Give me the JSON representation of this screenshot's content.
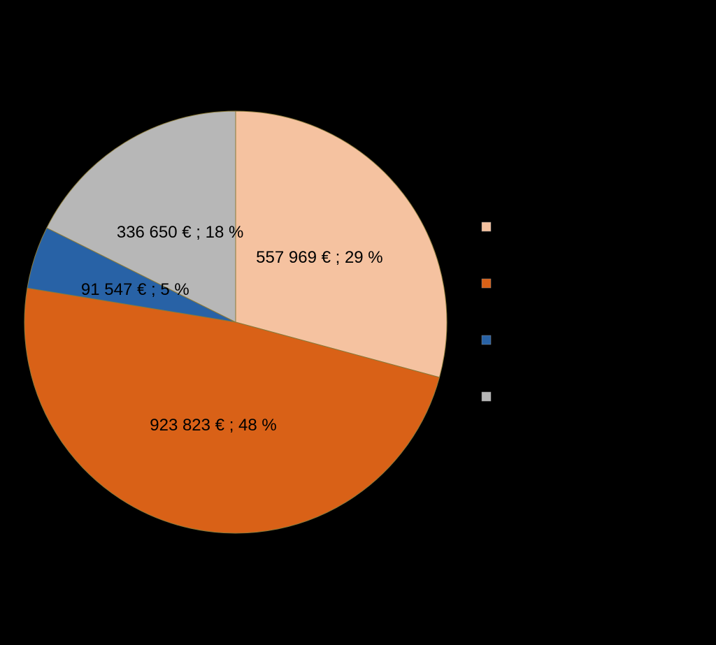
{
  "chart_data": {
    "type": "pie",
    "categories": [
      null,
      null,
      null,
      null
    ],
    "values": [
      557969,
      923823,
      91547,
      336650
    ],
    "value_labels": [
      "557 969 € ; 29 %",
      "923 823 € ; 48 %",
      "91 547 € ; 5 %",
      "336 650 € ; 18 %"
    ],
    "colors": [
      "#f5c2a0",
      "#d96117",
      "#2862a6",
      "#b7b7b7"
    ],
    "legend": "right"
  }
}
